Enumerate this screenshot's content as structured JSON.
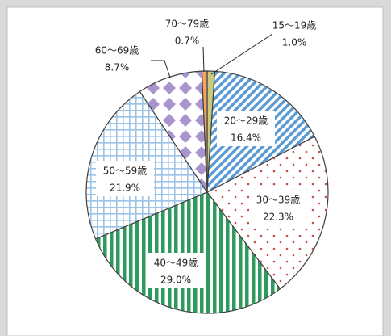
{
  "chart_data": {
    "type": "pie",
    "categories": [
      "15～19歳",
      "20～29歳",
      "30～39歳",
      "40～49歳",
      "50～59歳",
      "60～69歳",
      "70～79歳"
    ],
    "values": [
      1.0,
      16.4,
      22.3,
      29.0,
      21.9,
      8.7,
      0.7
    ],
    "value_labels": [
      "1.0%",
      "16.4%",
      "22.3%",
      "29.0%",
      "21.9%",
      "8.7%",
      "0.7%"
    ],
    "colors": [
      "#c9c97f",
      "#5b9bd5",
      "#c0504d",
      "#2e9a5e",
      "#9dc3e6",
      "#a895cf",
      "#f4a460"
    ]
  }
}
